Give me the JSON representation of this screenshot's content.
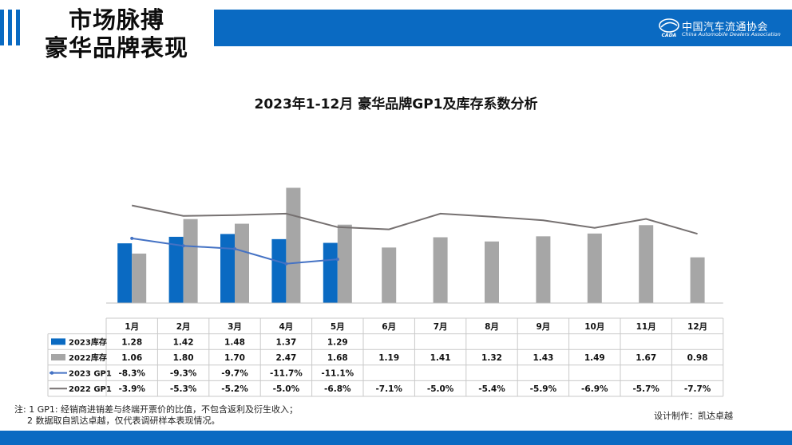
{
  "page": {
    "title_line1": "市场脉搏",
    "title_line2": "豪华品牌表现",
    "logo_cn": "中国汽车流通协会",
    "logo_en": "China Automobile Dealers Association",
    "logo_mark": "CADA",
    "chart_title": "2023年1-12月 豪华品牌GP1及库存系数分析",
    "footnote_1": "注: 1  GP1: 经销商进销差与终端开票价的比值，不包含返利及衍生收入；",
    "footnote_2": "2 数据取自凯达卓越，仅代表调研样本表现情况。",
    "credit": "设计制作：凯达卓越",
    "colors": {
      "brand_blue": "#0a6ac2",
      "bar_2023": "#0a6ac2",
      "bar_2022": "#a6a6a6",
      "line_2023_gp1": "#4472c4",
      "line_2022_gp1": "#767171"
    }
  },
  "chart_data": {
    "type": "bar",
    "title": "2023年1-12月 豪华品牌GP1及库存系数分析",
    "categories": [
      "1月",
      "2月",
      "3月",
      "4月",
      "5月",
      "6月",
      "7月",
      "8月",
      "9月",
      "10月",
      "11月",
      "12月"
    ],
    "series": [
      {
        "name": "2023库存",
        "kind": "bar",
        "values": [
          1.28,
          1.42,
          1.48,
          1.37,
          1.29,
          null,
          null,
          null,
          null,
          null,
          null,
          null
        ],
        "labels": [
          "1.28",
          "1.42",
          "1.48",
          "1.37",
          "1.29",
          "",
          "",
          "",
          "",
          "",
          "",
          ""
        ]
      },
      {
        "name": "2022库存",
        "kind": "bar",
        "values": [
          1.06,
          1.8,
          1.7,
          2.47,
          1.68,
          1.19,
          1.41,
          1.32,
          1.43,
          1.49,
          1.67,
          0.98
        ],
        "labels": [
          "1.06",
          "1.80",
          "1.70",
          "2.47",
          "1.68",
          "1.19",
          "1.41",
          "1.32",
          "1.43",
          "1.49",
          "1.67",
          "0.98"
        ]
      },
      {
        "name": "2023 GP1",
        "kind": "line",
        "values": [
          -8.3,
          -9.3,
          -9.7,
          -11.7,
          -11.1,
          null,
          null,
          null,
          null,
          null,
          null,
          null
        ],
        "labels": [
          "-8.3%",
          "-9.3%",
          "-9.7%",
          "-11.7%",
          "-11.1%",
          "",
          "",
          "",
          "",
          "",
          "",
          ""
        ]
      },
      {
        "name": "2022 GP1",
        "kind": "line",
        "values": [
          -3.9,
          -5.3,
          -5.2,
          -5.0,
          -6.8,
          -7.1,
          -5.0,
          -5.4,
          -5.9,
          -6.9,
          -5.7,
          -7.7
        ],
        "labels": [
          "-3.9%",
          "-5.3%",
          "-5.2%",
          "-5.0%",
          "-6.8%",
          "-7.1%",
          "-5.0%",
          "-5.4%",
          "-5.9%",
          "-6.9%",
          "-5.7%",
          "-7.7%"
        ]
      }
    ],
    "legend": "table-rows-left",
    "grid": false
  }
}
